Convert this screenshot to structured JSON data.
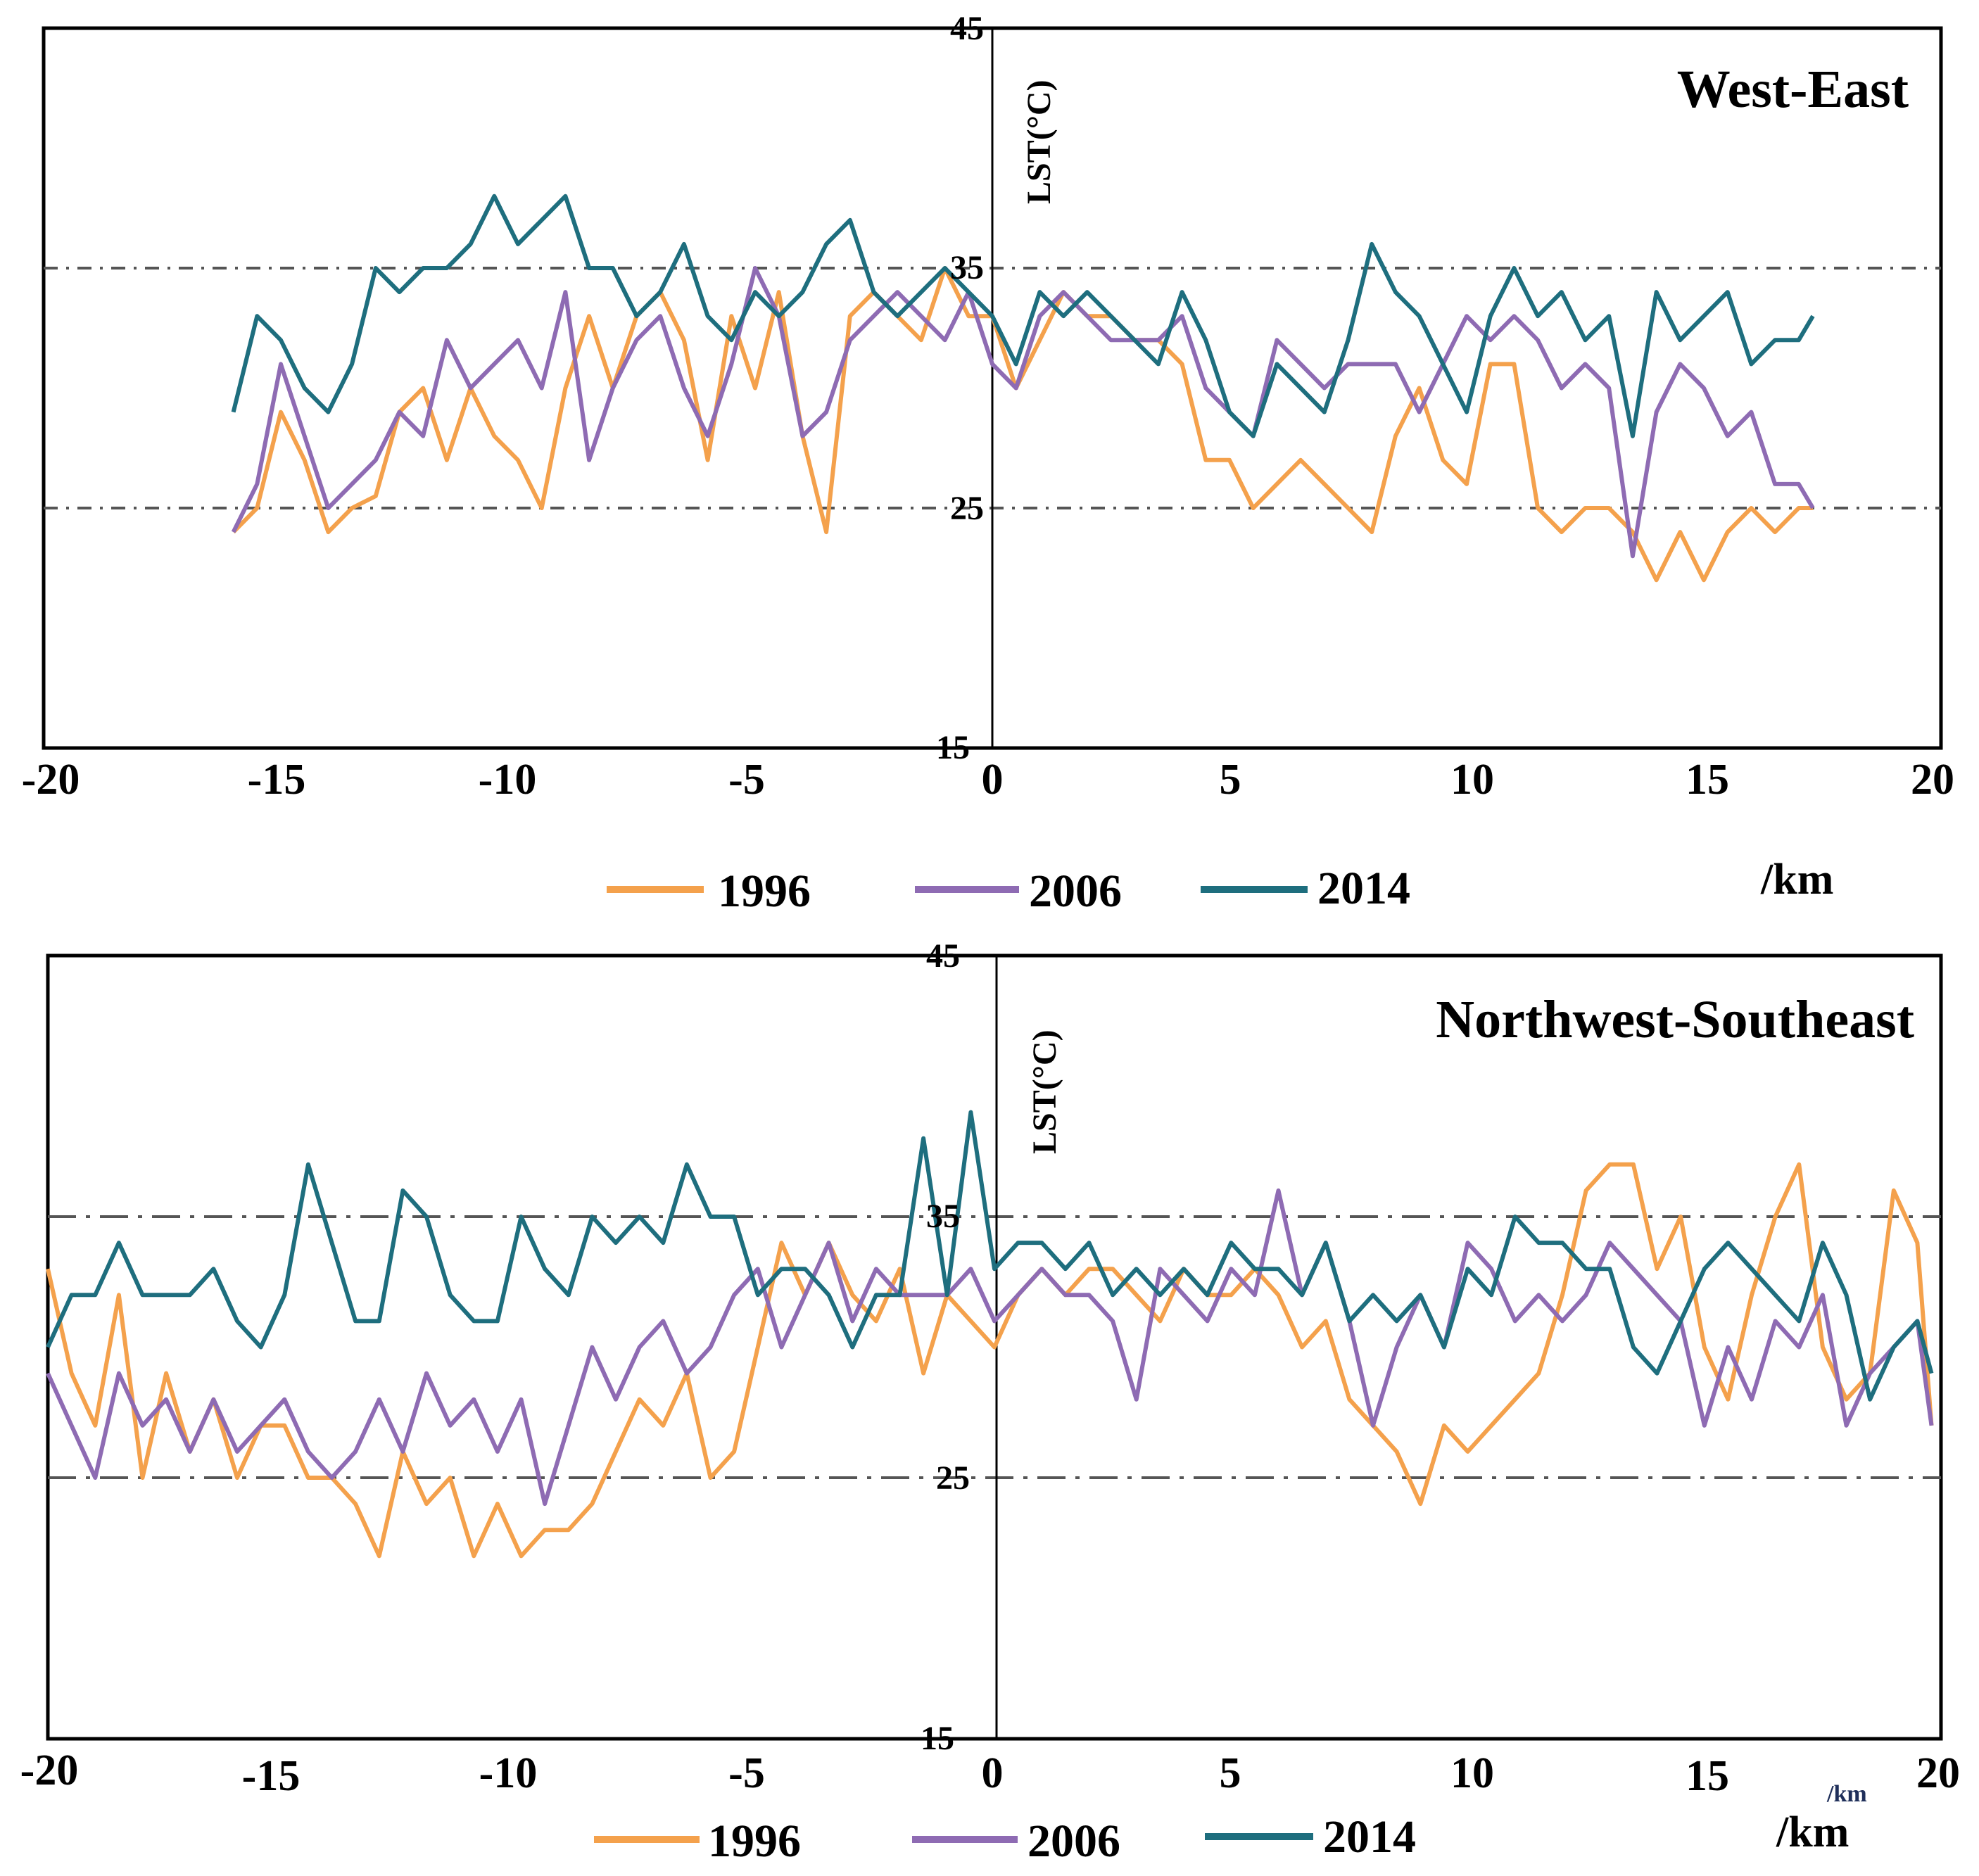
{
  "chart_data": [
    {
      "type": "line",
      "title": "West-East",
      "xlabel": "/km",
      "ylabel": "LST(°C)",
      "xlim": [
        -20,
        20
      ],
      "ylim": [
        15,
        45
      ],
      "xticks": [
        "-20",
        "-15",
        "-10",
        "-5",
        "0",
        "5",
        "10",
        "15",
        "20"
      ],
      "yticks": [
        "45",
        "35",
        "25",
        "15"
      ],
      "reference_lines": [
        35,
        25
      ],
      "legend_position": "bottom",
      "series": [
        {
          "name": "1996",
          "color": "#f4a14c",
          "x": [
            -16,
            -15.5,
            -15,
            -14.5,
            -14,
            -13.5,
            -13,
            -12.5,
            -12,
            -11.5,
            -11,
            -10.5,
            -10,
            -9.5,
            -9,
            -8.5,
            -8,
            -7.5,
            -7,
            -6.5,
            -6,
            -5.5,
            -5,
            -4.5,
            -4,
            -3.5,
            -3,
            -2.5,
            -2,
            -1.5,
            -1,
            -0.5,
            0,
            0.5,
            1,
            1.5,
            2,
            2.5,
            3,
            3.5,
            4,
            4.5,
            5,
            5.5,
            6,
            6.5,
            7,
            7.5,
            8,
            8.5,
            9,
            9.5,
            10,
            10.5,
            11,
            11.5,
            12,
            12.5,
            13,
            13.5,
            14,
            14.5,
            15,
            15.5,
            16,
            16.5,
            17,
            17.3
          ],
          "y": [
            24,
            25,
            29,
            27,
            24,
            25,
            25.5,
            29,
            30,
            27,
            30,
            28,
            27,
            25,
            30,
            33,
            30,
            33,
            34,
            32,
            27,
            33,
            30,
            34,
            28,
            24,
            33,
            34,
            33,
            32,
            35,
            33,
            33,
            30,
            32,
            34,
            33,
            33,
            32,
            32,
            31,
            27,
            27,
            25,
            26,
            27,
            26,
            25,
            24,
            28,
            30,
            27,
            26,
            31,
            31,
            25,
            24,
            25,
            25,
            24,
            22,
            24,
            22,
            24,
            25,
            24,
            25,
            25
          ]
        },
        {
          "name": "2006",
          "color": "#8e6bb3",
          "x": [
            -16,
            -15.5,
            -15,
            -14.5,
            -14,
            -13.5,
            -13,
            -12.5,
            -12,
            -11.5,
            -11,
            -10.5,
            -10,
            -9.5,
            -9,
            -8.5,
            -8,
            -7.5,
            -7,
            -6.5,
            -6,
            -5.5,
            -5,
            -4.5,
            -4,
            -3.5,
            -3,
            -2.5,
            -2,
            -1.5,
            -1,
            -0.5,
            0,
            0.5,
            1,
            1.5,
            2,
            2.5,
            3,
            3.5,
            4,
            4.5,
            5,
            5.5,
            6,
            6.5,
            7,
            7.5,
            8,
            8.5,
            9,
            9.5,
            10,
            10.5,
            11,
            11.5,
            12,
            12.5,
            13,
            13.5,
            14,
            14.5,
            15,
            15.5,
            16,
            16.5,
            17,
            17.3
          ],
          "y": [
            24,
            26,
            31,
            28,
            25,
            26,
            27,
            29,
            28,
            32,
            30,
            31,
            32,
            30,
            34,
            27,
            30,
            32,
            33,
            30,
            28,
            31,
            35,
            33,
            28,
            29,
            32,
            33,
            34,
            33,
            32,
            34,
            31,
            30,
            33,
            34,
            33,
            32,
            32,
            32,
            33,
            30,
            29,
            28,
            32,
            31,
            30,
            31,
            31,
            31,
            29,
            31,
            33,
            32,
            33,
            32,
            30,
            31,
            30,
            23,
            29,
            31,
            30,
            28,
            29,
            26,
            26,
            25
          ]
        },
        {
          "name": "2014",
          "color": "#1e6e7e",
          "x": [
            -16,
            -15.5,
            -15,
            -14.5,
            -14,
            -13.5,
            -13,
            -12.5,
            -12,
            -11.5,
            -11,
            -10.5,
            -10,
            -9.5,
            -9,
            -8.5,
            -8,
            -7.5,
            -7,
            -6.5,
            -6,
            -5.5,
            -5,
            -4.5,
            -4,
            -3.5,
            -3,
            -2.5,
            -2,
            -1.5,
            -1,
            -0.5,
            0,
            0.5,
            1,
            1.5,
            2,
            2.5,
            3,
            3.5,
            4,
            4.5,
            5,
            5.5,
            6,
            6.5,
            7,
            7.5,
            8,
            8.5,
            9,
            9.5,
            10,
            10.5,
            11,
            11.5,
            12,
            12.5,
            13,
            13.5,
            14,
            14.5,
            15,
            15.5,
            16,
            16.5,
            17,
            17.3
          ],
          "y": [
            29,
            33,
            32,
            30,
            29,
            31,
            35,
            34,
            35,
            35,
            36,
            38,
            36,
            37,
            38,
            35,
            35,
            33,
            34,
            36,
            33,
            32,
            34,
            33,
            34,
            36,
            37,
            34,
            33,
            34,
            35,
            34,
            33,
            31,
            34,
            33,
            34,
            33,
            32,
            31,
            34,
            32,
            29,
            28,
            31,
            30,
            29,
            32,
            36,
            34,
            33,
            31,
            29,
            33,
            35,
            33,
            34,
            32,
            33,
            28,
            34,
            32,
            33,
            34,
            31,
            32,
            32,
            33
          ]
        }
      ]
    },
    {
      "type": "line",
      "title": "Northwest-Southeast",
      "xlabel": "/km",
      "xlabel_small": "/km",
      "ylabel": "LST(°C)",
      "xlim": [
        -20,
        20
      ],
      "ylim": [
        15,
        45
      ],
      "xticks": [
        "-20",
        "-15",
        "-10",
        "-5",
        "0",
        "5",
        "10",
        "15",
        "20"
      ],
      "yticks": [
        "45",
        "35",
        "25",
        "15"
      ],
      "reference_lines": [
        35,
        25
      ],
      "legend_position": "bottom",
      "series": [
        {
          "name": "1996",
          "color": "#f4a14c",
          "x": [
            -20,
            -19.5,
            -19,
            -18.5,
            -18,
            -17.5,
            -17,
            -16.5,
            -16,
            -15.5,
            -15,
            -14.5,
            -14,
            -13.5,
            -13,
            -12.5,
            -12,
            -11.5,
            -11,
            -10.5,
            -10,
            -9.5,
            -9,
            -8.5,
            -8,
            -7.5,
            -7,
            -6.5,
            -6,
            -5.5,
            -5,
            -4.5,
            -4,
            -3.5,
            -3,
            -2.5,
            -2,
            -1.5,
            -1,
            -0.5,
            0,
            0.5,
            1,
            1.5,
            2,
            2.5,
            3,
            3.5,
            4,
            4.5,
            5,
            5.5,
            6,
            6.5,
            7,
            7.5,
            8,
            8.5,
            9,
            9.5,
            10,
            10.5,
            11,
            11.5,
            12,
            12.5,
            13,
            13.5,
            14,
            14.5,
            15,
            15.5,
            16,
            16.5,
            17,
            17.5,
            18,
            18.5,
            19,
            19.5,
            19.8
          ],
          "y": [
            33,
            29,
            27,
            32,
            25,
            29,
            26,
            28,
            25,
            27,
            27,
            25,
            25,
            24,
            22,
            26,
            24,
            25,
            22,
            24,
            22,
            23,
            23,
            24,
            26,
            28,
            27,
            29,
            25,
            26,
            30,
            34,
            32,
            34,
            32,
            31,
            33,
            29,
            32,
            31,
            30,
            32,
            33,
            32,
            33,
            33,
            32,
            31,
            33,
            32,
            32,
            33,
            32,
            30,
            31,
            28,
            27,
            26,
            24,
            27,
            26,
            27,
            28,
            29,
            32,
            36,
            37,
            37,
            33,
            35,
            30,
            28,
            32,
            35,
            37,
            30,
            28,
            29,
            36,
            34,
            27
          ]
        },
        {
          "name": "2006",
          "color": "#8e6bb3",
          "x": [
            -20,
            -19.5,
            -19,
            -18.5,
            -18,
            -17.5,
            -17,
            -16.5,
            -16,
            -15.5,
            -15,
            -14.5,
            -14,
            -13.5,
            -13,
            -12.5,
            -12,
            -11.5,
            -11,
            -10.5,
            -10,
            -9.5,
            -9,
            -8.5,
            -8,
            -7.5,
            -7,
            -6.5,
            -6,
            -5.5,
            -5,
            -4.5,
            -4,
            -3.5,
            -3,
            -2.5,
            -2,
            -1.5,
            -1,
            -0.5,
            0,
            0.5,
            1,
            1.5,
            2,
            2.5,
            3,
            3.5,
            4,
            4.5,
            5,
            5.5,
            6,
            6.5,
            7,
            7.5,
            8,
            8.5,
            9,
            9.5,
            10,
            10.5,
            11,
            11.5,
            12,
            12.5,
            13,
            13.5,
            14,
            14.5,
            15,
            15.5,
            16,
            16.5,
            17,
            17.5,
            18,
            18.5,
            19,
            19.5,
            19.8
          ],
          "y": [
            29,
            27,
            25,
            29,
            27,
            28,
            26,
            28,
            26,
            27,
            28,
            26,
            25,
            26,
            28,
            26,
            29,
            27,
            28,
            26,
            28,
            24,
            27,
            30,
            28,
            30,
            31,
            29,
            30,
            32,
            33,
            30,
            32,
            34,
            31,
            33,
            32,
            32,
            32,
            33,
            31,
            32,
            33,
            32,
            32,
            31,
            28,
            33,
            32,
            31,
            33,
            32,
            36,
            32,
            34,
            31,
            27,
            30,
            32,
            30,
            34,
            33,
            31,
            32,
            31,
            32,
            34,
            33,
            32,
            31,
            27,
            30,
            28,
            31,
            30,
            32,
            27,
            29,
            30,
            31,
            27
          ]
        },
        {
          "name": "2014",
          "color": "#1e6e7e",
          "x": [
            -20,
            -19.5,
            -19,
            -18.5,
            -18,
            -17.5,
            -17,
            -16.5,
            -16,
            -15.5,
            -15,
            -14.5,
            -14,
            -13.5,
            -13,
            -12.5,
            -12,
            -11.5,
            -11,
            -10.5,
            -10,
            -9.5,
            -9,
            -8.5,
            -8,
            -7.5,
            -7,
            -6.5,
            -6,
            -5.5,
            -5,
            -4.5,
            -4,
            -3.5,
            -3,
            -2.5,
            -2,
            -1.5,
            -1,
            -0.5,
            0,
            0.5,
            1,
            1.5,
            2,
            2.5,
            3,
            3.5,
            4,
            4.5,
            5,
            5.5,
            6,
            6.5,
            7,
            7.5,
            8,
            8.5,
            9,
            9.5,
            10,
            10.5,
            11,
            11.5,
            12,
            12.5,
            13,
            13.5,
            14,
            14.5,
            15,
            15.5,
            16,
            16.5,
            17,
            17.5,
            18,
            18.5,
            19,
            19.5,
            19.8
          ],
          "y": [
            30,
            32,
            32,
            34,
            32,
            32,
            32,
            33,
            31,
            30,
            32,
            37,
            34,
            31,
            31,
            36,
            35,
            32,
            31,
            31,
            35,
            33,
            32,
            35,
            34,
            35,
            34,
            37,
            35,
            35,
            32,
            33,
            33,
            32,
            30,
            32,
            32,
            38,
            32,
            39,
            33,
            34,
            34,
            33,
            34,
            32,
            33,
            32,
            33,
            32,
            34,
            33,
            33,
            32,
            34,
            31,
            32,
            31,
            32,
            30,
            33,
            32,
            35,
            34,
            34,
            33,
            33,
            30,
            29,
            31,
            33,
            34,
            33,
            32,
            31,
            34,
            32,
            28,
            30,
            31,
            29
          ]
        }
      ]
    }
  ]
}
